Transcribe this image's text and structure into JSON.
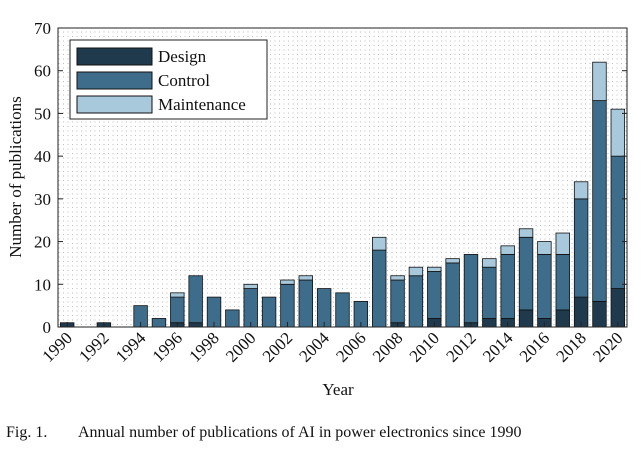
{
  "chart_data": {
    "type": "bar",
    "stacked": true,
    "categories": [
      "1990",
      "1991",
      "1992",
      "1993",
      "1994",
      "1995",
      "1996",
      "1997",
      "1998",
      "1999",
      "2000",
      "2001",
      "2002",
      "2003",
      "2004",
      "2005",
      "2006",
      "2007",
      "2008",
      "2009",
      "2010",
      "2011",
      "2012",
      "2013",
      "2014",
      "2015",
      "2016",
      "2017",
      "2018",
      "2019",
      "2020"
    ],
    "tick_labels": [
      "1990",
      "1992",
      "1994",
      "1996",
      "1998",
      "2000",
      "2002",
      "2004",
      "2006",
      "2008",
      "2010",
      "2012",
      "2014",
      "2016",
      "2018",
      "2020"
    ],
    "series": [
      {
        "name": "Design",
        "color": "#1f3a4d",
        "values": [
          1,
          0,
          1,
          0,
          0,
          0,
          1,
          1,
          0,
          0,
          0,
          0,
          0,
          0,
          0,
          0,
          0,
          0,
          1,
          0,
          2,
          0,
          1,
          2,
          2,
          4,
          2,
          4,
          7,
          6,
          9
        ]
      },
      {
        "name": "Control",
        "color": "#3d6d8a",
        "values": [
          0,
          0,
          0,
          0,
          5,
          2,
          6,
          11,
          7,
          4,
          9,
          7,
          10,
          11,
          9,
          8,
          6,
          18,
          10,
          12,
          11,
          15,
          16,
          12,
          15,
          17,
          15,
          13,
          23,
          47,
          31
        ]
      },
      {
        "name": "Maintenance",
        "color": "#a8c8dc",
        "values": [
          0,
          0,
          0,
          0,
          0,
          0,
          1,
          0,
          0,
          0,
          1,
          0,
          1,
          1,
          0,
          0,
          0,
          3,
          1,
          2,
          1,
          1,
          0,
          2,
          2,
          2,
          3,
          5,
          4,
          9,
          11
        ]
      }
    ],
    "xlabel": "Year",
    "ylabel": "Number of publications",
    "ylim": [
      0,
      70
    ],
    "yticks": [
      0,
      10,
      20,
      30,
      40,
      50,
      60,
      70
    ],
    "grid": true,
    "legend": "top-left"
  },
  "caption": {
    "label": "Fig. 1.",
    "text": "Annual number of publications of AI in power electronics since 1990"
  }
}
